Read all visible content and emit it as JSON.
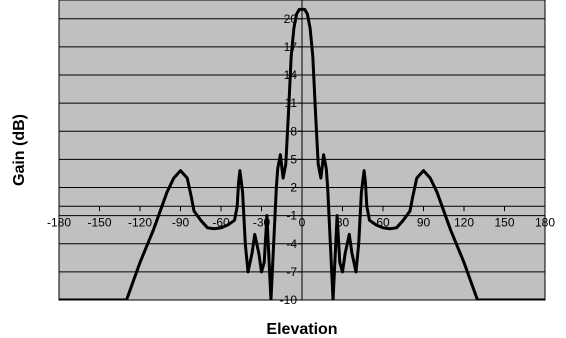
{
  "chart_data": {
    "type": "line",
    "title": "",
    "xlabel": "Elevation",
    "ylabel": "Gain (dB)",
    "xlim": [
      -180,
      180
    ],
    "ylim": [
      -10,
      22
    ],
    "x_ticks": [
      -180,
      -150,
      -120,
      -90,
      -60,
      -30,
      0,
      30,
      60,
      90,
      120,
      150,
      180
    ],
    "y_ticks": [
      20,
      17,
      14,
      11,
      8,
      5,
      2,
      -1,
      -4,
      -7,
      -10
    ],
    "y_tick_labels": [
      "20",
      "17",
      "14",
      "11",
      "8",
      "5",
      "2",
      "-1",
      "-4",
      "-7",
      "-10"
    ],
    "grid": true,
    "legend": "none",
    "colors": {
      "plot_background": "#c0c0c0",
      "line": "#000000",
      "grid": "#000000"
    },
    "series": [
      {
        "x": [
          -180,
          -130,
          -125,
          -120,
          -110,
          -100,
          -95,
          -90,
          -85,
          -82,
          -80,
          -75,
          -70,
          -65,
          -60,
          -55,
          -50,
          -48,
          -47,
          -46,
          -44,
          -42,
          -40,
          -37,
          -35,
          -32,
          -30,
          -28,
          -26,
          -24,
          -23,
          -22,
          -20,
          -19,
          -18,
          -16,
          -14,
          -12,
          -10,
          -8,
          -6,
          -4,
          -2,
          0,
          2,
          4,
          6,
          8,
          10,
          12,
          14,
          16,
          18,
          19,
          20,
          22,
          23,
          24,
          26,
          28,
          30,
          32,
          35,
          37,
          40,
          42,
          44,
          46,
          47,
          48,
          50,
          55,
          60,
          65,
          70,
          75,
          80,
          82,
          85,
          90,
          95,
          100,
          110,
          120,
          125,
          130,
          180
        ],
        "y": [
          -10,
          -10,
          -8,
          -6,
          -2.5,
          1.5,
          3,
          3.8,
          3,
          1,
          -0.5,
          -1.5,
          -2.3,
          -2.4,
          -2.3,
          -2,
          -1.5,
          0,
          2.5,
          3.8,
          1.5,
          -4,
          -7,
          -5,
          -3,
          -5,
          -7,
          -6,
          -1,
          -7,
          -10,
          -7,
          -1,
          2,
          4,
          5.5,
          3,
          4.5,
          10,
          16,
          19,
          20.5,
          21,
          21,
          21,
          20.5,
          19,
          16,
          10,
          4.5,
          3,
          5.5,
          4,
          2,
          -1,
          -7,
          -10,
          -7,
          -1,
          -6,
          -7,
          -5,
          -3,
          -5,
          -7,
          -4,
          1.5,
          3.8,
          2.5,
          0,
          -1.5,
          -2,
          -2.3,
          -2.4,
          -2.3,
          -1.5,
          -0.5,
          1,
          3,
          3.8,
          3,
          1.5,
          -2.5,
          -6,
          -8,
          -10,
          -10
        ]
      }
    ]
  }
}
